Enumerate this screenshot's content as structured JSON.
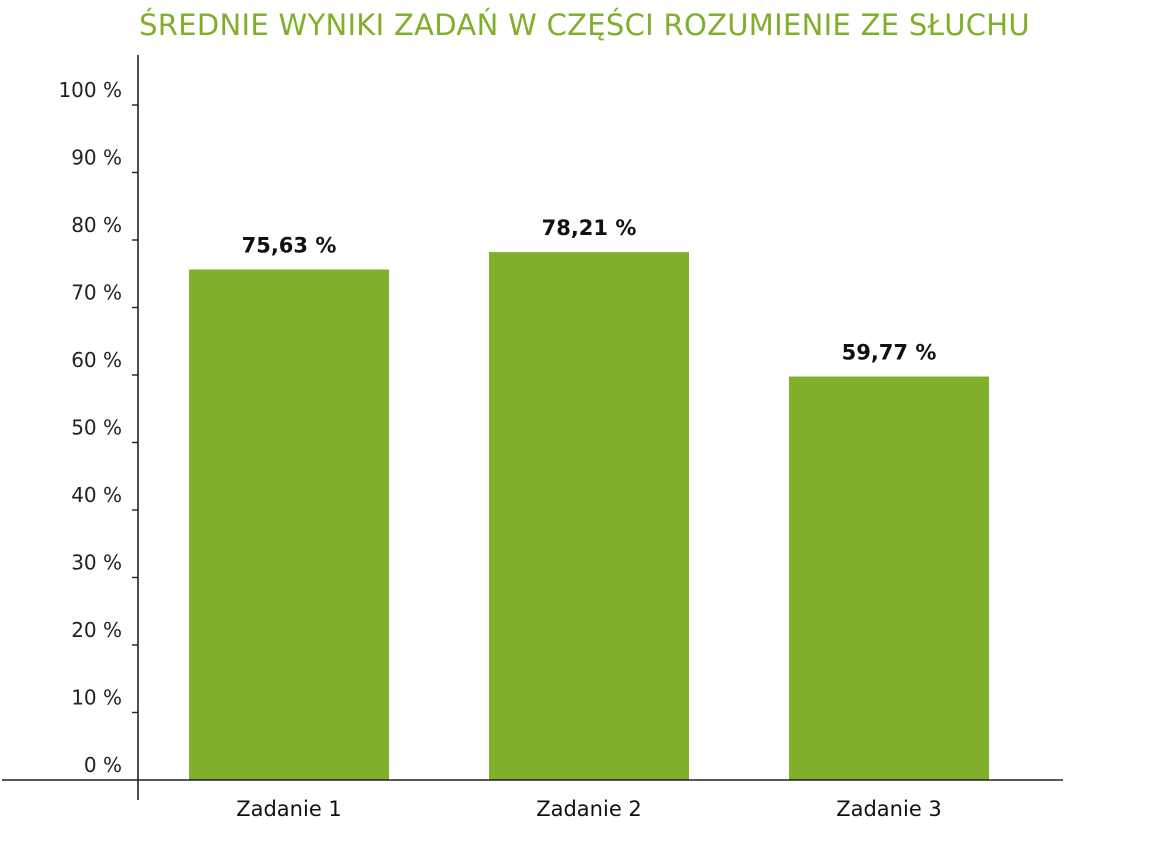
{
  "chart_data": {
    "type": "bar",
    "title": "ŚREDNIE WYNIKI ZADAŃ W CZĘŚCI ROZUMIENIE ZE SŁUCHU",
    "categories": [
      "Zadanie 1",
      "Zadanie 2",
      "Zadanie 3"
    ],
    "values": [
      75.63,
      78.21,
      59.77
    ],
    "data_labels": [
      "75,63 %",
      "78,21 %",
      "59,77 %"
    ],
    "ylim": [
      0,
      100
    ],
    "yticks": [
      0,
      10,
      20,
      30,
      40,
      50,
      60,
      70,
      80,
      90,
      100
    ],
    "ytick_labels": [
      "0 %",
      "10 %",
      "20 %",
      "30 %",
      "40 %",
      "50 %",
      "60 %",
      "70 %",
      "80 %",
      "90 %",
      "100 %"
    ],
    "xlabel": "",
    "ylabel": "",
    "grid": false,
    "legend": "none",
    "colors": {
      "bar": "#80af2a",
      "title": "#80af2a",
      "axis": "#222222"
    }
  }
}
